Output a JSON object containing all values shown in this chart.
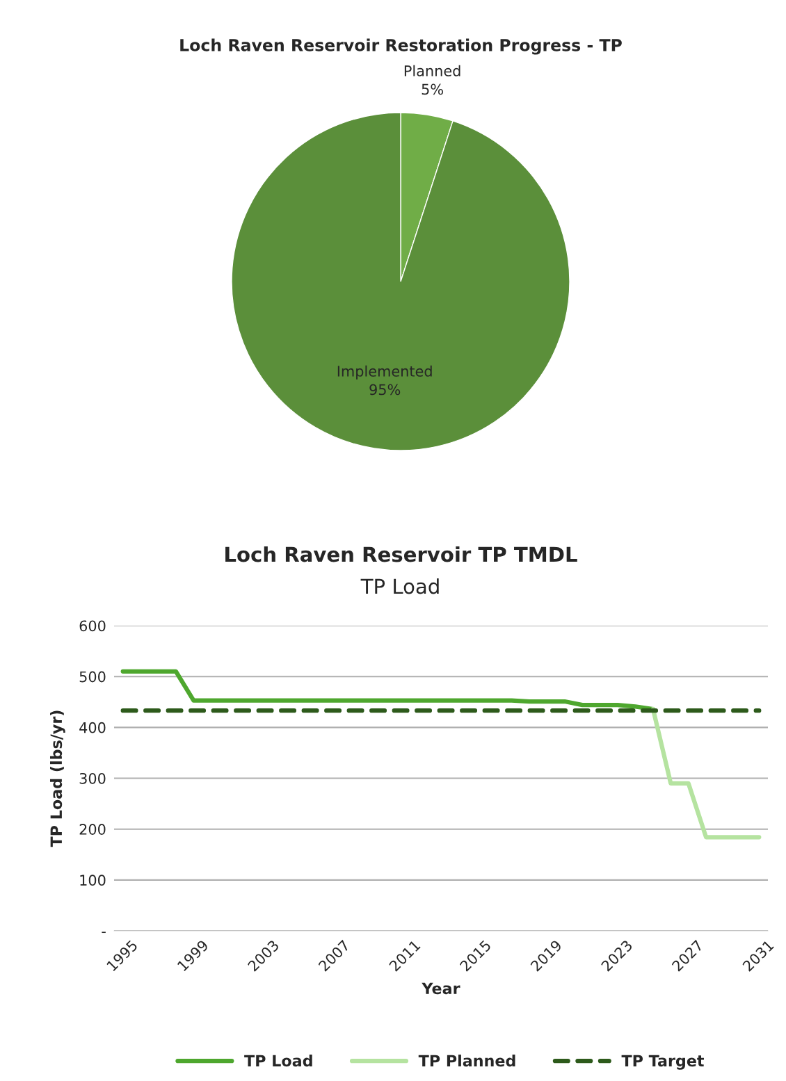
{
  "chart_data": [
    {
      "type": "pie",
      "title": "Loch Raven Reservoir Restoration Progress - TP",
      "categories": [
        "Planned",
        "Implemented"
      ],
      "values": [
        5,
        95
      ],
      "colors": [
        "#70ad47",
        "#5b8f3a"
      ],
      "value_labels": [
        "5%",
        "95%"
      ]
    },
    {
      "type": "line",
      "title": "Loch Raven Reservoir TP TMDL",
      "subtitle": "TP Load",
      "xlabel": "Year",
      "ylabel": "TP Load (lbs/yr)",
      "xlim": [
        1994.5,
        2031.5
      ],
      "xticks": [
        1995,
        1999,
        2003,
        2007,
        2011,
        2015,
        2019,
        2023,
        2027,
        2031
      ],
      "ylim": [
        0,
        600
      ],
      "yticks": [
        {
          "value": 0,
          "label": "-"
        },
        100,
        200,
        300,
        400,
        500,
        600
      ],
      "grid": "y",
      "legend": "bottom",
      "series": [
        {
          "name": "TP Load",
          "color": "#4ea72e",
          "line_style": "solid",
          "x": [
            1995,
            1996,
            1997,
            1998,
            1999,
            2000,
            2005,
            2010,
            2015,
            2017,
            2018,
            2019,
            2020,
            2021,
            2022,
            2023,
            2024,
            2025
          ],
          "values": [
            510,
            510,
            510,
            510,
            453,
            453,
            453,
            453,
            453,
            453,
            451,
            451,
            451,
            444,
            444,
            444,
            441,
            436
          ]
        },
        {
          "name": "TP Planned",
          "color": "#b5e3a0",
          "line_style": "solid",
          "x": [
            2025,
            2026,
            2027,
            2028,
            2029,
            2030,
            2031
          ],
          "values": [
            436,
            290,
            290,
            184,
            184,
            184,
            184
          ]
        },
        {
          "name": "TP Target",
          "color": "#2d5a1b",
          "line_style": "dashed",
          "x": [
            1995,
            2031
          ],
          "values": [
            433,
            433
          ]
        }
      ]
    }
  ]
}
